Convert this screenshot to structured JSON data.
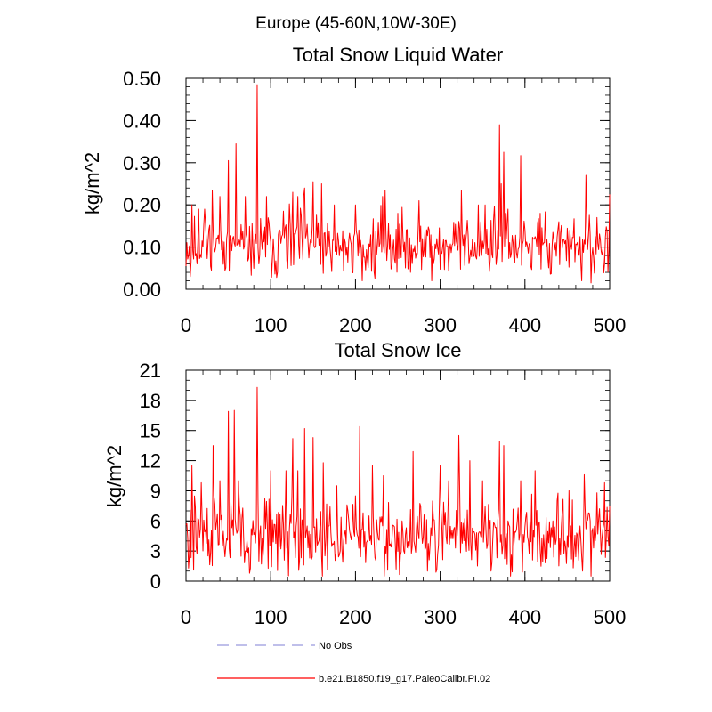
{
  "figure": {
    "title": "Europe (45-60N,10W-30E)"
  },
  "legend": [
    {
      "label": "No Obs",
      "color": "#9999dd",
      "dash": true
    },
    {
      "label": "b.e21.B1850.f19_g17.PaleoCalibr.PI.02",
      "color": "#ff0000",
      "dash": false
    }
  ],
  "chart_data": [
    {
      "type": "line",
      "title": "Total Snow Liquid Water",
      "xlabel": "",
      "ylabel": "kg/m^2",
      "xlim": [
        0,
        500
      ],
      "ylim": [
        0,
        0.5
      ],
      "xticks": [
        0,
        100,
        200,
        300,
        400,
        500
      ],
      "xtick_labels": [
        "0",
        "100",
        "200",
        "300",
        "400",
        "500"
      ],
      "yticks": [
        0,
        0.1,
        0.2,
        0.3,
        0.4,
        0.5
      ],
      "ytick_labels": [
        "0.00",
        "0.10",
        "0.20",
        "0.30",
        "0.40",
        "0.50"
      ],
      "series": [
        {
          "name": "b.e21.B1850.f19_g17.PaleoCalibr.PI.02",
          "color": "#ff0000",
          "baseline": 0.1,
          "noise": 0.055,
          "min": 0.012,
          "seed": 11,
          "peaks": [
            [
              5,
              0.03
            ],
            [
              7,
              0.2
            ],
            [
              15,
              0.19
            ],
            [
              22,
              0.19
            ],
            [
              31,
              0.235
            ],
            [
              40,
              0.22
            ],
            [
              50,
              0.305
            ],
            [
              55,
              0.12
            ],
            [
              59,
              0.345
            ],
            [
              70,
              0.22
            ],
            [
              84,
              0.485
            ],
            [
              86,
              0.06
            ],
            [
              95,
              0.22
            ],
            [
              115,
              0.185
            ],
            [
              126,
              0.23
            ],
            [
              132,
              0.22
            ],
            [
              140,
              0.24
            ],
            [
              150,
              0.255
            ],
            [
              160,
              0.25
            ],
            [
              175,
              0.2
            ],
            [
              200,
              0.2
            ],
            [
              208,
              0.02
            ],
            [
              232,
              0.22
            ],
            [
              235,
              0.235
            ],
            [
              250,
              0.18
            ],
            [
              275,
              0.21
            ],
            [
              290,
              0.02
            ],
            [
              325,
              0.235
            ],
            [
              345,
              0.2
            ],
            [
              353,
              0.2
            ],
            [
              370,
              0.39
            ],
            [
              372,
              0.25
            ],
            [
              375,
              0.325
            ],
            [
              380,
              0.19
            ],
            [
              395,
              0.317
            ],
            [
              418,
              0.18
            ],
            [
              440,
              0.16
            ],
            [
              467,
              0.02
            ],
            [
              472,
              0.27
            ],
            [
              478,
              0.015
            ],
            [
              485,
              0.17
            ],
            [
              500,
              0.225
            ]
          ]
        }
      ]
    },
    {
      "type": "line",
      "title": "Total Snow Ice",
      "xlabel": "",
      "ylabel": "kg/m^2",
      "xlim": [
        0,
        500
      ],
      "ylim": [
        0,
        21
      ],
      "xticks": [
        0,
        100,
        200,
        300,
        400,
        500
      ],
      "xtick_labels": [
        "0",
        "100",
        "200",
        "300",
        "400",
        "500"
      ],
      "yticks": [
        0,
        3,
        6,
        9,
        12,
        15,
        18,
        21
      ],
      "ytick_labels": [
        "0",
        "3",
        "6",
        "9",
        "12",
        "15",
        "18",
        "21"
      ],
      "series": [
        {
          "name": "b.e21.B1850.f19_g17.PaleoCalibr.PI.02",
          "color": "#ff0000",
          "baseline": 4.5,
          "noise": 2.6,
          "min": 0.5,
          "seed": 29,
          "peaks": [
            [
              3,
              1.3
            ],
            [
              7,
              11.5
            ],
            [
              18,
              9.8
            ],
            [
              32,
              13.5
            ],
            [
              40,
              10
            ],
            [
              50,
              16.9
            ],
            [
              57,
              17
            ],
            [
              62,
              10
            ],
            [
              84,
              19.3
            ],
            [
              86,
              2
            ],
            [
              100,
              11
            ],
            [
              118,
              11
            ],
            [
              126,
              14.2
            ],
            [
              132,
              11
            ],
            [
              140,
              15.2
            ],
            [
              150,
              14.3
            ],
            [
              162,
              11.8
            ],
            [
              178,
              9.5
            ],
            [
              200,
              8.5
            ],
            [
              205,
              15.4
            ],
            [
              220,
              11.5
            ],
            [
              233,
              10.5
            ],
            [
              255,
              6
            ],
            [
              268,
              12.9
            ],
            [
              285,
              1
            ],
            [
              300,
              11.5
            ],
            [
              310,
              10
            ],
            [
              322,
              14.5
            ],
            [
              335,
              12
            ],
            [
              350,
              10
            ],
            [
              360,
              1
            ],
            [
              370,
              13.9
            ],
            [
              375,
              13.5
            ],
            [
              380,
              6
            ],
            [
              395,
              10
            ],
            [
              412,
              11
            ],
            [
              438,
              8
            ],
            [
              452,
              9
            ],
            [
              468,
              1
            ],
            [
              470,
              10.6
            ],
            [
              478,
              0.5
            ],
            [
              485,
              8.8
            ],
            [
              500,
              7.5
            ]
          ]
        }
      ]
    }
  ]
}
